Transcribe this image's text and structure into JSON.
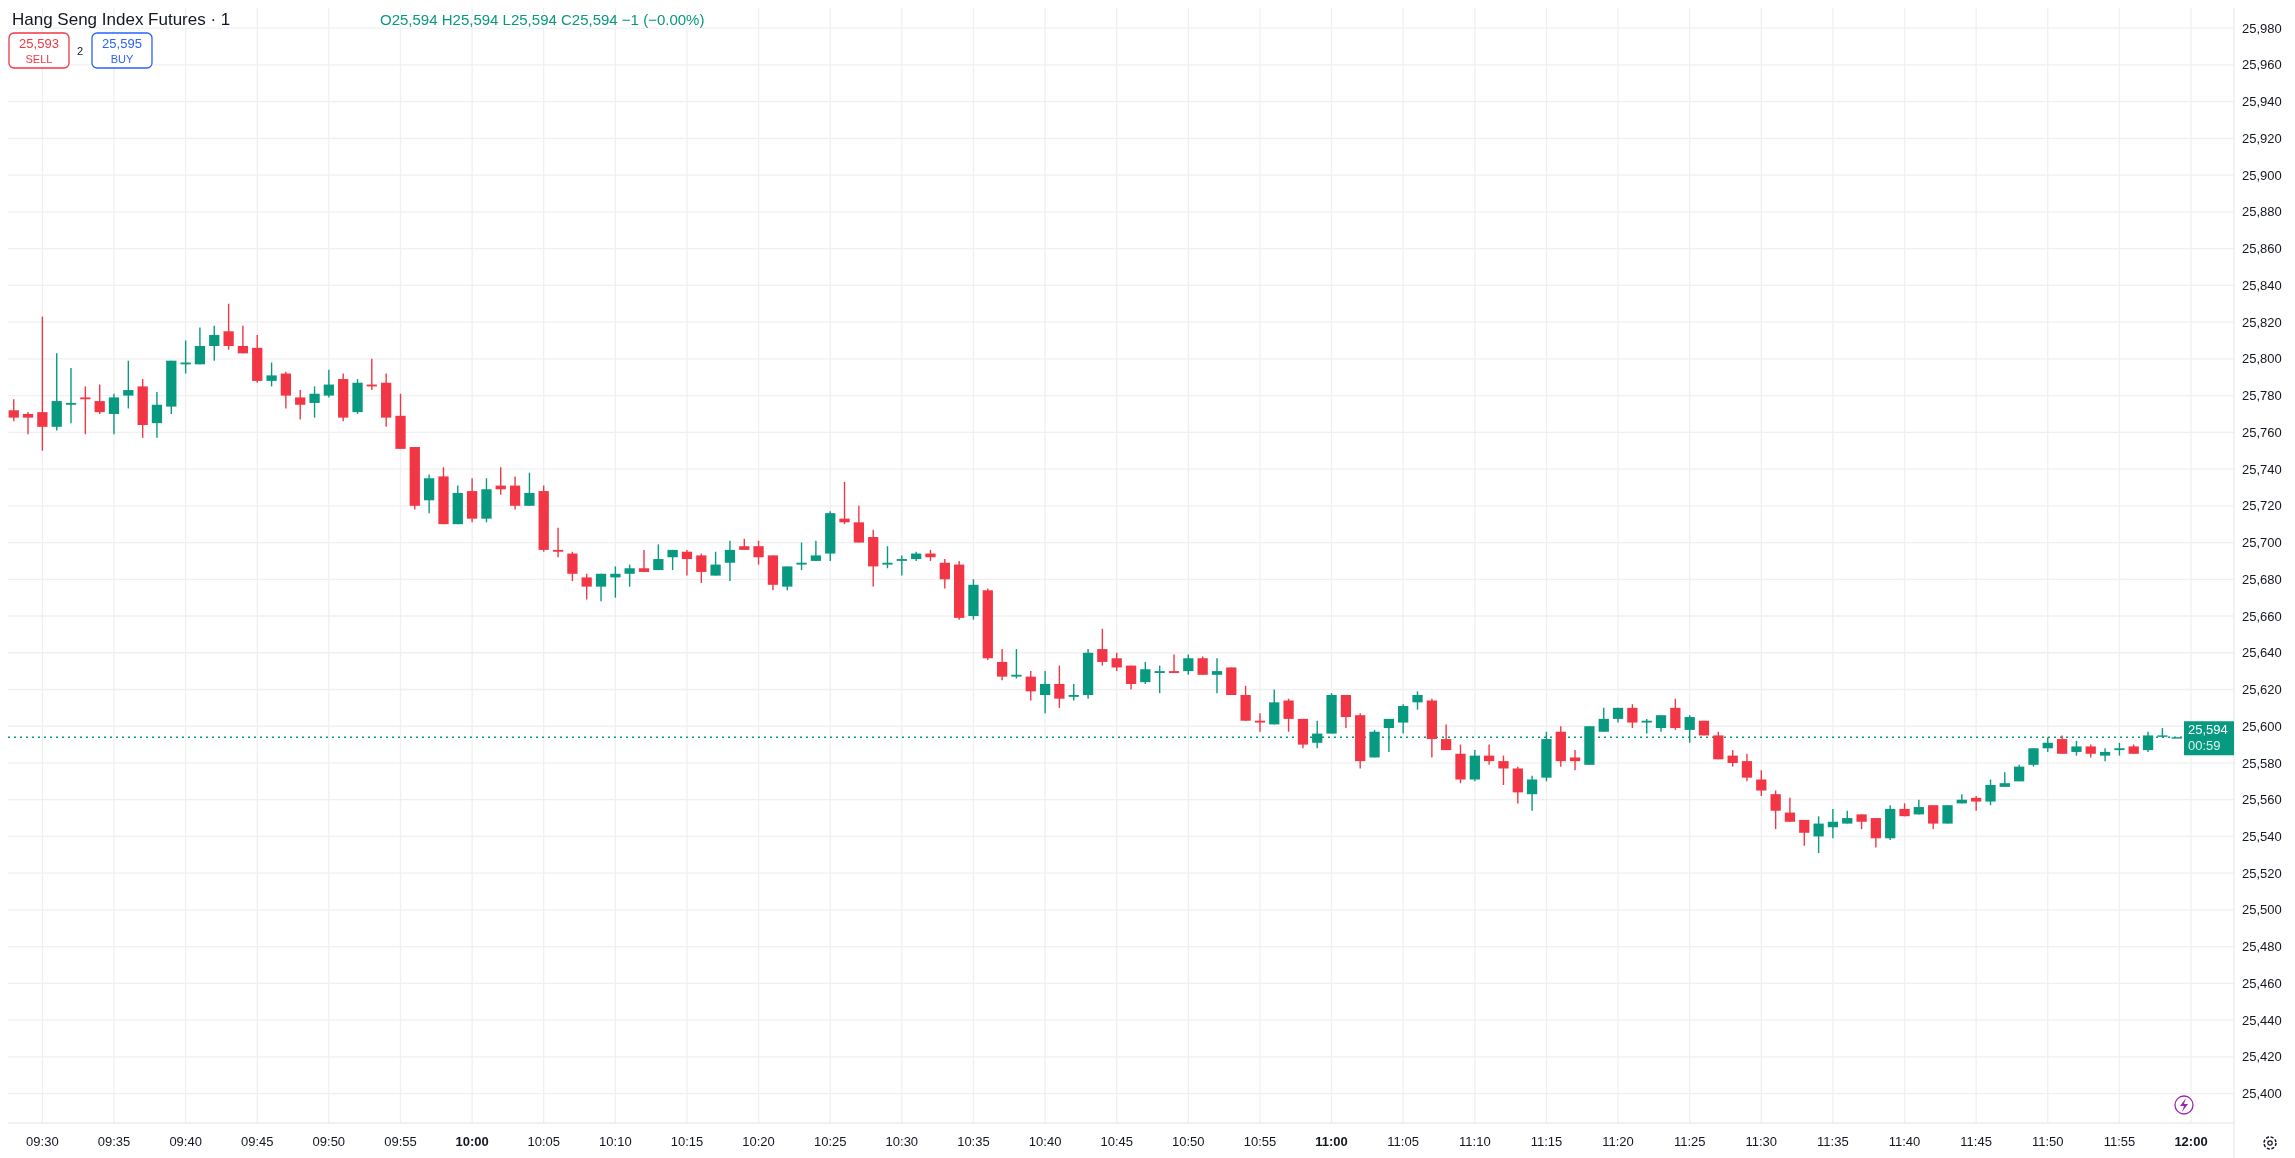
{
  "chart_data": {
    "type": "candlestick",
    "title": "Hang Seng Index Futures · 1",
    "subtitle": "O25,594 H25,594 L25,594 C25,594 −1 (−0.00%)",
    "x": [
      9.4667,
      9.4833,
      9.5,
      9.5167,
      9.5333,
      9.55,
      9.5667,
      9.5833,
      9.6,
      9.6167,
      9.6333,
      9.65,
      9.6667,
      9.6833,
      9.7,
      9.7167,
      9.7333,
      9.75,
      9.7667,
      9.7833,
      9.8,
      9.8167,
      9.8333,
      9.85,
      9.8667,
      9.8833,
      9.9,
      9.9167,
      9.9333,
      9.95,
      9.9667,
      9.9833,
      10,
      10.0167,
      10.0333,
      10.05,
      10.0667,
      10.0833,
      10.1,
      10.1167,
      10.1333,
      10.15,
      10.1667,
      10.1833,
      10.2,
      10.2167,
      10.2333,
      10.25,
      10.2667,
      10.2833,
      10.3,
      10.3167,
      10.3333,
      10.35,
      10.3667,
      10.3833,
      10.4,
      10.4167,
      10.4333,
      10.45,
      10.4667,
      10.4833,
      10.5,
      10.5167,
      10.5333,
      10.55,
      10.5667,
      10.5833,
      10.6,
      10.6167,
      10.6333,
      10.65,
      10.6667,
      10.6833,
      10.7,
      10.7167,
      10.7333,
      10.75,
      10.7667,
      10.7833,
      10.8,
      10.8167,
      10.8333,
      10.85,
      10.8667,
      10.8833,
      10.9,
      10.9167,
      10.9333,
      10.95,
      10.9667,
      10.9833,
      11,
      11.0167,
      11.0333,
      11.05,
      11.0667,
      11.0833,
      11.1,
      11.1167,
      11.1333,
      11.15,
      11.1667,
      11.1833,
      11.2,
      11.2167,
      11.2333,
      11.25,
      11.2667,
      11.2833,
      11.3,
      11.3167,
      11.3333,
      11.35,
      11.3667,
      11.3833,
      11.4,
      11.4167,
      11.4333,
      11.45,
      11.4667,
      11.4833,
      11.5,
      11.5167,
      11.5333,
      11.55,
      11.5667,
      11.5833,
      11.6,
      11.6167,
      11.6333,
      11.65,
      11.6667,
      11.6833,
      11.7,
      11.7167,
      11.7333,
      11.75,
      11.7667,
      11.7833,
      11.8,
      11.8167,
      11.8333,
      11.85,
      11.8667,
      11.8833,
      11.9,
      11.9167,
      11.9333,
      11.95,
      11.9667,
      11.9833
    ],
    "ohlc": [
      [
        25772,
        25778,
        25766,
        25768
      ],
      [
        25770,
        25771,
        25759,
        25768
      ],
      [
        25771,
        25823,
        25750,
        25763
      ],
      [
        25763,
        25803,
        25761,
        25777
      ],
      [
        25775,
        25795,
        25765,
        25776
      ],
      [
        25779,
        25785,
        25759,
        25778
      ],
      [
        25777,
        25786,
        25770,
        25771
      ],
      [
        25770,
        25781,
        25759,
        25779
      ],
      [
        25780,
        25799,
        25773,
        25783
      ],
      [
        25785,
        25789,
        25757,
        25764
      ],
      [
        25765,
        25782,
        25757,
        25775
      ],
      [
        25774,
        25799,
        25770,
        25799
      ],
      [
        25797,
        25810,
        25792,
        25798
      ],
      [
        25797,
        25817,
        25797,
        25807
      ],
      [
        25807,
        25818,
        25799,
        25813
      ],
      [
        25815,
        25830,
        25805,
        25807
      ],
      [
        25807,
        25818,
        25803,
        25803
      ],
      [
        25806,
        25813,
        25787,
        25788
      ],
      [
        25788,
        25798,
        25785,
        25791
      ],
      [
        25792,
        25793,
        25773,
        25780
      ],
      [
        25779,
        25783,
        25767,
        25775
      ],
      [
        25776,
        25785,
        25768,
        25781
      ],
      [
        25780,
        25794,
        25779,
        25786
      ],
      [
        25789,
        25792,
        25766,
        25768
      ],
      [
        25771,
        25789,
        25770,
        25787
      ],
      [
        25786,
        25800,
        25783,
        25785
      ],
      [
        25787,
        25792,
        25763,
        25768
      ],
      [
        25769,
        25781,
        25751,
        25751
      ],
      [
        25752,
        25752,
        25718,
        25720
      ],
      [
        25723,
        25737,
        25716,
        25735
      ],
      [
        25736,
        25741,
        25710,
        25710
      ],
      [
        25710,
        25731,
        25710,
        25727
      ],
      [
        25728,
        25735,
        25711,
        25713
      ],
      [
        25713,
        25735,
        25711,
        25729
      ],
      [
        25731,
        25741,
        25726,
        25729
      ],
      [
        25731,
        25736,
        25718,
        25720
      ],
      [
        25720,
        25738,
        25720,
        25727
      ],
      [
        25728,
        25731,
        25695,
        25696
      ],
      [
        25696,
        25708,
        25692,
        25695
      ],
      [
        25694,
        25695,
        25679,
        25683
      ],
      [
        25681,
        25683,
        25669,
        25676
      ],
      [
        25676,
        25683,
        25668,
        25683
      ],
      [
        25681,
        25687,
        25670,
        25683
      ],
      [
        25683,
        25688,
        25676,
        25686
      ],
      [
        25686,
        25696,
        25684,
        25684
      ],
      [
        25685,
        25699,
        25685,
        25691
      ],
      [
        25692,
        25696,
        25685,
        25696
      ],
      [
        25695,
        25696,
        25682,
        25691
      ],
      [
        25693,
        25694,
        25678,
        25684
      ],
      [
        25682,
        25695,
        25682,
        25688
      ],
      [
        25689,
        25701,
        25679,
        25696
      ],
      [
        25698,
        25702,
        25696,
        25696
      ],
      [
        25698,
        25701,
        25688,
        25692
      ],
      [
        25693,
        25693,
        25674,
        25677
      ],
      [
        25676,
        25687,
        25674,
        25687
      ],
      [
        25688,
        25700,
        25685,
        25689
      ],
      [
        25690,
        25701,
        25690,
        25693
      ],
      [
        25694,
        25717,
        25690,
        25716
      ],
      [
        25713,
        25733,
        25710,
        25711
      ],
      [
        25711,
        25720,
        25700,
        25700
      ],
      [
        25703,
        25707,
        25676,
        25687
      ],
      [
        25688,
        25698,
        25686,
        25689
      ],
      [
        25690,
        25693,
        25682,
        25691
      ],
      [
        25691,
        25695,
        25690,
        25694
      ],
      [
        25694,
        25696,
        25690,
        25692
      ],
      [
        25689,
        25691,
        25675,
        25680
      ],
      [
        25688,
        25690,
        25658,
        25659
      ],
      [
        25660,
        25680,
        25658,
        25677
      ],
      [
        25674,
        25675,
        25636,
        25637
      ],
      [
        25635,
        25642,
        25625,
        25627
      ],
      [
        25627,
        25642,
        25626,
        25628
      ],
      [
        25627,
        25630,
        25614,
        25619
      ],
      [
        25617,
        25630,
        25607,
        25623
      ],
      [
        25623,
        25633,
        25610,
        25615
      ],
      [
        25616,
        25623,
        25614,
        25617
      ],
      [
        25617,
        25642,
        25615,
        25640
      ],
      [
        25642,
        25653,
        25633,
        25635
      ],
      [
        25637,
        25640,
        25630,
        25632
      ],
      [
        25633,
        25633,
        25620,
        25623
      ],
      [
        25624,
        25635,
        25623,
        25631
      ],
      [
        25629,
        25633,
        25618,
        25630
      ],
      [
        25630,
        25639,
        25629,
        25629
      ],
      [
        25630,
        25639,
        25628,
        25637
      ],
      [
        25637,
        25638,
        25628,
        25628
      ],
      [
        25628,
        25637,
        25618,
        25630
      ],
      [
        25632,
        25632,
        25617,
        25617
      ],
      [
        25617,
        25622,
        25603,
        25603
      ],
      [
        25603,
        25607,
        25597,
        25602
      ],
      [
        25601,
        25620,
        25601,
        25613
      ],
      [
        25614,
        25615,
        25597,
        25604
      ],
      [
        25604,
        25604,
        25588,
        25590
      ],
      [
        25591,
        25603,
        25588,
        25596
      ],
      [
        25596,
        25618,
        25596,
        25617
      ],
      [
        25617,
        25617,
        25599,
        25605
      ],
      [
        25606,
        25607,
        25577,
        25581
      ],
      [
        25583,
        25598,
        25583,
        25597
      ],
      [
        25599,
        25604,
        25586,
        25604
      ],
      [
        25602,
        25612,
        25596,
        25611
      ],
      [
        25613,
        25619,
        25609,
        25617
      ],
      [
        25614,
        25615,
        25583,
        25593
      ],
      [
        25593,
        25601,
        25587,
        25587
      ],
      [
        25585,
        25590,
        25569,
        25571
      ],
      [
        25571,
        25587,
        25570,
        25584
      ],
      [
        25584,
        25590,
        25579,
        25581
      ],
      [
        25581,
        25584,
        25568,
        25577
      ],
      [
        25577,
        25578,
        25558,
        25564
      ],
      [
        25563,
        25573,
        25554,
        25571
      ],
      [
        25572,
        25597,
        25570,
        25593
      ],
      [
        25597,
        25600,
        25578,
        25581
      ],
      [
        25583,
        25587,
        25576,
        25581
      ],
      [
        25579,
        25600,
        25579,
        25600
      ],
      [
        25597,
        25610,
        25597,
        25604
      ],
      [
        25604,
        25610,
        25602,
        25610
      ],
      [
        25610,
        25612,
        25599,
        25602
      ],
      [
        25602,
        25604,
        25596,
        25603
      ],
      [
        25599,
        25606,
        25597,
        25606
      ],
      [
        25610,
        25615,
        25598,
        25599
      ],
      [
        25598,
        25606,
        25591,
        25605
      ],
      [
        25603,
        25603,
        25595,
        25595
      ],
      [
        25595,
        25597,
        25582,
        25582
      ],
      [
        25584,
        25587,
        25578,
        25580
      ],
      [
        25581,
        25585,
        25570,
        25572
      ],
      [
        25571,
        25576,
        25562,
        25565
      ],
      [
        25563,
        25565,
        25544,
        25554
      ],
      [
        25553,
        25561,
        25548,
        25548
      ],
      [
        25549,
        25549,
        25535,
        25542
      ],
      [
        25540,
        25551,
        25531,
        25547
      ],
      [
        25545,
        25555,
        25539,
        25548
      ],
      [
        25547,
        25554,
        25547,
        25550
      ],
      [
        25552,
        25552,
        25544,
        25548
      ],
      [
        25550,
        25550,
        25534,
        25539
      ],
      [
        25539,
        25557,
        25538,
        25555
      ],
      [
        25555,
        25558,
        25551,
        25551
      ],
      [
        25552,
        25560,
        25552,
        25556
      ],
      [
        25557,
        25557,
        25544,
        25547
      ],
      [
        25547,
        25557,
        25547,
        25557
      ],
      [
        25558,
        25563,
        25558,
        25560
      ],
      [
        25561,
        25562,
        25554,
        25559
      ],
      [
        25559,
        25571,
        25557,
        25568
      ],
      [
        25567,
        25575,
        25567,
        25569
      ],
      [
        25570,
        25579,
        25570,
        25578
      ],
      [
        25579,
        25588,
        25578,
        25588
      ],
      [
        25588,
        25594,
        25586,
        25591
      ],
      [
        25593,
        25595,
        25585,
        25585
      ],
      [
        25586,
        25592,
        25584,
        25589
      ],
      [
        25589,
        25590,
        25583,
        25585
      ],
      [
        25584,
        25588,
        25581,
        25586
      ],
      [
        25587,
        25591,
        25584,
        25588
      ],
      [
        25589,
        25590,
        25585,
        25585
      ],
      [
        25587,
        25597,
        25586,
        25595
      ],
      [
        25595,
        25599,
        25594,
        25595
      ],
      [
        25594,
        25594,
        25594,
        25594
      ]
    ],
    "colors": [
      "#f23645",
      "#f23645",
      "#f23645",
      "#089981",
      "#089981",
      "#f23645",
      "#f23645",
      "#089981",
      "#089981",
      "#f23645",
      "#089981",
      "#089981",
      "#089981",
      "#089981",
      "#089981",
      "#f23645",
      "#f23645",
      "#f23645",
      "#089981",
      "#f23645",
      "#f23645",
      "#089981",
      "#089981",
      "#f23645",
      "#089981",
      "#f23645",
      "#f23645",
      "#f23645",
      "#f23645",
      "#089981",
      "#f23645",
      "#089981",
      "#f23645",
      "#089981",
      "#f23645",
      "#f23645",
      "#089981",
      "#f23645",
      "#f23645",
      "#f23645",
      "#f23645",
      "#089981",
      "#089981",
      "#089981",
      "#f23645",
      "#089981",
      "#089981",
      "#f23645",
      "#f23645",
      "#089981",
      "#089981",
      "#f23645",
      "#f23645",
      "#f23645",
      "#089981",
      "#089981",
      "#089981",
      "#089981",
      "#f23645",
      "#f23645",
      "#f23645",
      "#089981",
      "#089981",
      "#089981",
      "#f23645",
      "#f23645",
      "#f23645",
      "#089981",
      "#f23645",
      "#f23645",
      "#089981",
      "#f23645",
      "#089981",
      "#f23645",
      "#089981",
      "#089981",
      "#f23645",
      "#f23645",
      "#f23645",
      "#089981",
      "#089981",
      "#f23645",
      "#089981",
      "#f23645",
      "#089981",
      "#f23645",
      "#f23645",
      "#f23645",
      "#089981",
      "#f23645",
      "#f23645",
      "#089981",
      "#089981",
      "#f23645",
      "#f23645",
      "#089981",
      "#089981",
      "#089981",
      "#089981",
      "#f23645",
      "#f23645",
      "#f23645",
      "#089981",
      "#f23645",
      "#f23645",
      "#f23645",
      "#089981",
      "#089981",
      "#f23645",
      "#f23645",
      "#089981",
      "#089981",
      "#089981",
      "#f23645",
      "#089981",
      "#089981",
      "#f23645",
      "#089981",
      "#f23645",
      "#f23645",
      "#f23645",
      "#f23645",
      "#f23645",
      "#f23645",
      "#f23645",
      "#f23645",
      "#089981",
      "#089981",
      "#089981",
      "#f23645",
      "#f23645",
      "#089981",
      "#f23645",
      "#089981",
      "#f23645",
      "#089981",
      "#089981",
      "#f23645",
      "#089981",
      "#089981",
      "#089981",
      "#089981",
      "#089981",
      "#f23645",
      "#089981",
      "#f23645",
      "#089981",
      "#089981",
      "#f23645",
      "#089981",
      "#089981",
      "#089981"
    ],
    "xlim": [
      9.46,
      12.05
    ],
    "xticks": [
      {
        "value": 9.5,
        "label": "09:30"
      },
      {
        "value": 9.5833,
        "label": "09:35"
      },
      {
        "value": 9.6667,
        "label": "09:40"
      },
      {
        "value": 9.75,
        "label": "09:45"
      },
      {
        "value": 9.8333,
        "label": "09:50"
      },
      {
        "value": 9.9167,
        "label": "09:55"
      },
      {
        "value": 10,
        "label": "10:00"
      },
      {
        "value": 10.0833,
        "label": "10:05"
      },
      {
        "value": 10.1667,
        "label": "10:10"
      },
      {
        "value": 10.25,
        "label": "10:15"
      },
      {
        "value": 10.3333,
        "label": "10:20"
      },
      {
        "value": 10.4167,
        "label": "10:25"
      },
      {
        "value": 10.5,
        "label": "10:30"
      },
      {
        "value": 10.5833,
        "label": "10:35"
      },
      {
        "value": 10.6667,
        "label": "10:40"
      },
      {
        "value": 10.75,
        "label": "10:45"
      },
      {
        "value": 10.8333,
        "label": "10:50"
      },
      {
        "value": 10.9167,
        "label": "10:55"
      },
      {
        "value": 11,
        "label": "11:00"
      },
      {
        "value": 11.0833,
        "label": "11:05"
      },
      {
        "value": 11.1667,
        "label": "11:10"
      },
      {
        "value": 11.25,
        "label": "11:15"
      },
      {
        "value": 11.3333,
        "label": "11:20"
      },
      {
        "value": 11.4167,
        "label": "11:25"
      },
      {
        "value": 11.5,
        "label": "11:30"
      },
      {
        "value": 11.5833,
        "label": "11:35"
      },
      {
        "value": 11.6667,
        "label": "11:40"
      },
      {
        "value": 11.75,
        "label": "11:45"
      },
      {
        "value": 11.8333,
        "label": "11:50"
      },
      {
        "value": 11.9167,
        "label": "11:55"
      },
      {
        "value": 12,
        "label": "12:00"
      }
    ],
    "ylim": [
      25384,
      25991
    ],
    "yticks": [
      {
        "value": 25400,
        "label": "25,400"
      },
      {
        "value": 25420,
        "label": "25,420"
      },
      {
        "value": 25440,
        "label": "25,440"
      },
      {
        "value": 25460,
        "label": "25,460"
      },
      {
        "value": 25480,
        "label": "25,480"
      },
      {
        "value": 25500,
        "label": "25,500"
      },
      {
        "value": 25520,
        "label": "25,520"
      },
      {
        "value": 25540,
        "label": "25,540"
      },
      {
        "value": 25560,
        "label": "25,560"
      },
      {
        "value": 25580,
        "label": "25,580"
      },
      {
        "value": 25600,
        "label": "25,600"
      },
      {
        "value": 25620,
        "label": "25,620"
      },
      {
        "value": 25640,
        "label": "25,640"
      },
      {
        "value": 25660,
        "label": "25,660"
      },
      {
        "value": 25680,
        "label": "25,680"
      },
      {
        "value": 25700,
        "label": "25,700"
      },
      {
        "value": 25720,
        "label": "25,720"
      },
      {
        "value": 25740,
        "label": "25,740"
      },
      {
        "value": 25760,
        "label": "25,760"
      },
      {
        "value": 25780,
        "label": "25,780"
      },
      {
        "value": 25800,
        "label": "25,800"
      },
      {
        "value": 25820,
        "label": "25,820"
      },
      {
        "value": 25840,
        "label": "25,840"
      },
      {
        "value": 25860,
        "label": "25,860"
      },
      {
        "value": 25880,
        "label": "25,880"
      },
      {
        "value": 25900,
        "label": "25,900"
      },
      {
        "value": 25920,
        "label": "25,920"
      },
      {
        "value": 25940,
        "label": "25,940"
      },
      {
        "value": 25960,
        "label": "25,960"
      },
      {
        "value": 25980,
        "label": "25,980"
      }
    ],
    "grid": true,
    "ref_lines": [
      {
        "axis": "y",
        "value": 25594,
        "label": "25,594",
        "color": "#089981",
        "line_style": "dotted"
      }
    ],
    "annotations": [
      "25,593",
      "SELL",
      "2",
      "25,595",
      "BUY",
      "00:59"
    ]
  }
}
